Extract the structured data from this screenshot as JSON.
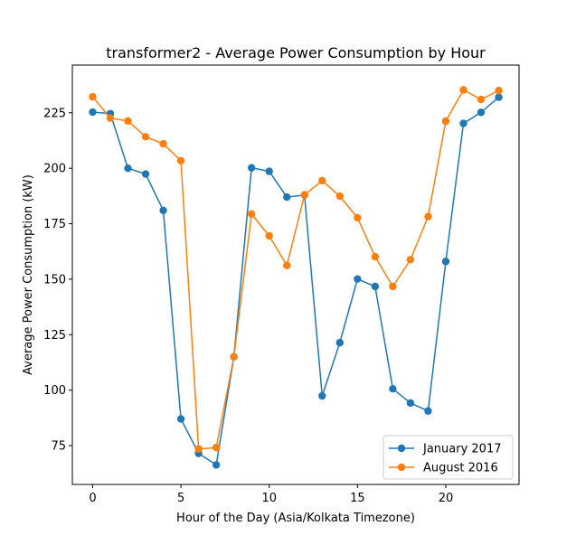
{
  "chart_data": {
    "type": "line",
    "title": "transformer2 - Average Power Consumption by Hour",
    "xlabel": "Hour of the Day (Asia/Kolkata Timezone)",
    "ylabel": "Average Power Consumption (kW)",
    "x": [
      0,
      1,
      2,
      3,
      4,
      5,
      6,
      7,
      8,
      9,
      10,
      11,
      12,
      13,
      14,
      15,
      16,
      17,
      18,
      19,
      20,
      21,
      22,
      23
    ],
    "xlim": [
      -1.15,
      24.15
    ],
    "ylim": [
      57.5,
      246.5
    ],
    "xticks": [
      0,
      5,
      10,
      15,
      20
    ],
    "yticks": [
      75,
      100,
      125,
      150,
      175,
      200,
      225
    ],
    "grid": false,
    "legend_position": "lower-right",
    "series": [
      {
        "name": "January 2017",
        "color": "#1f77b4",
        "values": [
          225.3,
          224.6,
          200.0,
          197.4,
          181.0,
          87.0,
          71.5,
          66.3,
          115.0,
          200.2,
          198.6,
          187.0,
          187.9,
          97.4,
          121.4,
          150.1,
          146.7,
          100.6,
          94.2,
          90.6,
          158.0,
          220.2,
          225.2,
          232.0
        ]
      },
      {
        "name": "August 2016",
        "color": "#ff7f0e",
        "values": [
          232.2,
          222.6,
          221.3,
          214.2,
          211.0,
          203.4,
          73.5,
          74.1,
          115.0,
          179.4,
          169.5,
          156.2,
          188.0,
          194.4,
          187.4,
          177.7,
          160.1,
          146.7,
          158.8,
          178.2,
          221.2,
          235.3,
          231.0,
          235.0
        ]
      }
    ]
  }
}
